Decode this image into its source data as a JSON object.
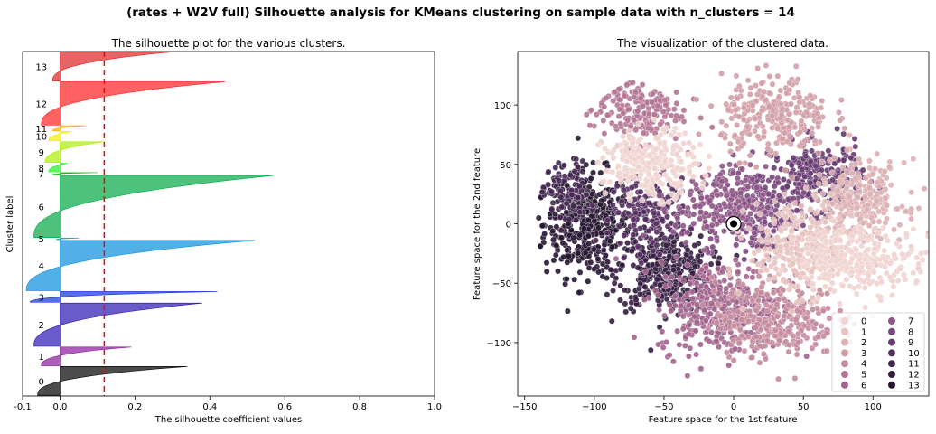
{
  "figure": {
    "suptitle": "(rates + W2V full) Silhouette analysis for KMeans clustering on sample data with n_clusters = 14"
  },
  "chart_data": [
    {
      "type": "bar",
      "title": "The silhouette plot for the various clusters.",
      "xlabel": "The silhouette coefficient values",
      "ylabel": "Cluster label",
      "xlim": [
        -0.1,
        1.0
      ],
      "xticks": [
        "-0.1",
        "0.0",
        "0.2",
        "0.4",
        "0.6",
        "0.8",
        "1.0"
      ],
      "xtick_values": [
        -0.1,
        0.0,
        0.2,
        0.4,
        0.6,
        0.8,
        1.0
      ],
      "average_silhouette": 0.118,
      "average_line_color": "#ff0000",
      "clusters": [
        {
          "label": "0",
          "size": 400,
          "max": 0.34,
          "min": -0.06,
          "color": "#000000"
        },
        {
          "label": "1",
          "size": 260,
          "max": 0.19,
          "min": -0.05,
          "color": "#8a1a9b"
        },
        {
          "label": "2",
          "size": 600,
          "max": 0.38,
          "min": -0.07,
          "color": "#2a15b0"
        },
        {
          "label": "3",
          "size": 150,
          "max": 0.42,
          "min": -0.08,
          "color": "#1030e0"
        },
        {
          "label": "4",
          "size": 700,
          "max": 0.52,
          "min": -0.09,
          "color": "#0a8fdc"
        },
        {
          "label": "5",
          "size": 20,
          "max": 0.05,
          "min": -0.01,
          "color": "#00a0b0"
        },
        {
          "label": "6",
          "size": 860,
          "max": 0.57,
          "min": -0.07,
          "color": "#00a844"
        },
        {
          "label": "7",
          "size": 30,
          "max": 0.1,
          "min": -0.02,
          "color": "#00b800"
        },
        {
          "label": "8",
          "size": 120,
          "max": 0.02,
          "min": -0.03,
          "color": "#22ee22"
        },
        {
          "label": "9",
          "size": 290,
          "max": 0.12,
          "min": -0.04,
          "color": "#aaee00"
        },
        {
          "label": "10",
          "size": 130,
          "max": 0.03,
          "min": -0.03,
          "color": "#eeee00"
        },
        {
          "label": "11",
          "size": 70,
          "max": 0.07,
          "min": -0.02,
          "color": "#ffaa00"
        },
        {
          "label": "12",
          "size": 600,
          "max": 0.44,
          "min": -0.05,
          "color": "#ff2020"
        },
        {
          "label": "13",
          "size": 400,
          "max": 0.29,
          "min": -0.02,
          "color": "#dd2222"
        }
      ]
    },
    {
      "type": "scatter",
      "title": "The visualization of the clustered data.",
      "xlabel": "Feature space for the 1st feature",
      "ylabel": "Feature space for the 2nd feature",
      "xlim": [
        -155,
        140
      ],
      "ylim": [
        -145,
        145
      ],
      "xticks": [
        "−150",
        "−100",
        "−50",
        "0",
        "50",
        "100"
      ],
      "xtick_values": [
        -150,
        -100,
        -50,
        0,
        50,
        100
      ],
      "yticks": [
        "−100",
        "−50",
        "0",
        "50",
        "100"
      ],
      "ytick_values": [
        -100,
        -50,
        0,
        50,
        100
      ],
      "legend_position": "lower-right",
      "legend": [
        {
          "label": "0",
          "color": "#efd4cf"
        },
        {
          "label": "1",
          "color": "#e8c3c0"
        },
        {
          "label": "2",
          "color": "#ddb0b2"
        },
        {
          "label": "3",
          "color": "#d29ea6"
        },
        {
          "label": "4",
          "color": "#c48b9c"
        },
        {
          "label": "5",
          "color": "#b47694"
        },
        {
          "label": "6",
          "color": "#a2648d"
        },
        {
          "label": "7",
          "color": "#8e5586"
        },
        {
          "label": "8",
          "color": "#7a477c"
        },
        {
          "label": "9",
          "color": "#673b70"
        },
        {
          "label": "10",
          "color": "#553061"
        },
        {
          "label": "11",
          "color": "#452751"
        },
        {
          "label": "12",
          "color": "#351e41"
        },
        {
          "label": "13",
          "color": "#261631"
        }
      ],
      "regions": [
        {
          "cluster": 13,
          "cx": -105,
          "cy": 0,
          "rx": 28,
          "ry": 40,
          "n": 420
        },
        {
          "cluster": 12,
          "cx": -50,
          "cy": -40,
          "rx": 30,
          "ry": 30,
          "n": 380
        },
        {
          "cluster": 11,
          "cx": -120,
          "cy": 25,
          "rx": 15,
          "ry": 25,
          "n": 90
        },
        {
          "cluster": 10,
          "cx": -60,
          "cy": 10,
          "rx": 25,
          "ry": 25,
          "n": 180
        },
        {
          "cluster": 9,
          "cx": 60,
          "cy": 40,
          "rx": 30,
          "ry": 25,
          "n": 240
        },
        {
          "cluster": 8,
          "cx": 20,
          "cy": 10,
          "rx": 25,
          "ry": 35,
          "n": 200
        },
        {
          "cluster": 7,
          "cx": -10,
          "cy": 15,
          "rx": 30,
          "ry": 30,
          "n": 200
        },
        {
          "cluster": 6,
          "cx": -10,
          "cy": -70,
          "rx": 40,
          "ry": 35,
          "n": 380
        },
        {
          "cluster": 5,
          "cx": -70,
          "cy": 95,
          "rx": 30,
          "ry": 25,
          "n": 180
        },
        {
          "cluster": 4,
          "cx": 30,
          "cy": -80,
          "rx": 40,
          "ry": 30,
          "n": 300
        },
        {
          "cluster": 3,
          "cx": 30,
          "cy": 90,
          "rx": 35,
          "ry": 30,
          "n": 280
        },
        {
          "cluster": 2,
          "cx": 90,
          "cy": 20,
          "rx": 30,
          "ry": 30,
          "n": 260
        },
        {
          "cluster": 1,
          "cx": 50,
          "cy": -20,
          "rx": 35,
          "ry": 35,
          "n": 300
        },
        {
          "cluster": 0,
          "cx": -60,
          "cy": 50,
          "rx": 30,
          "ry": 25,
          "n": 260
        },
        {
          "cluster": 0,
          "cx": 90,
          "cy": -30,
          "rx": 40,
          "ry": 25,
          "n": 260
        }
      ],
      "centroid_marker": {
        "x": 0,
        "y": 0
      }
    }
  ]
}
